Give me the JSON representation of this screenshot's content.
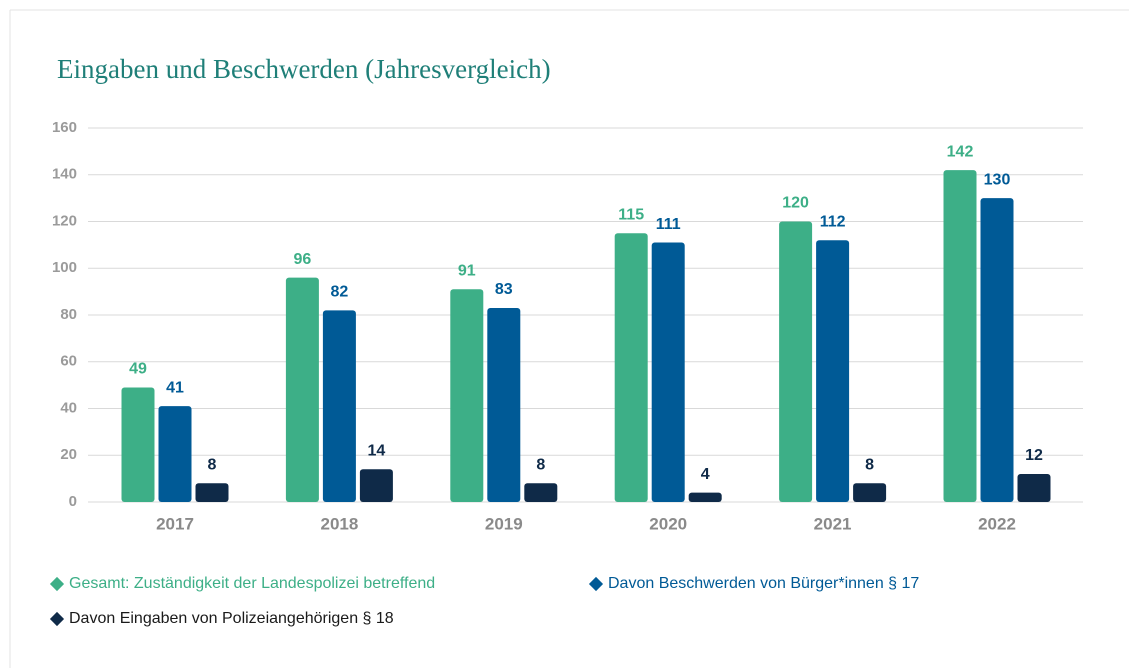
{
  "chart_data": {
    "type": "bar",
    "title": "Eingaben und Beschwerden (Jahresvergleich)",
    "categories": [
      "2017",
      "2018",
      "2019",
      "2020",
      "2021",
      "2022"
    ],
    "series": [
      {
        "name": "Gesamt: Zuständigkeit der Landespolizei betreffend",
        "color": "#3daf87",
        "values": [
          49,
          96,
          91,
          115,
          120,
          142
        ]
      },
      {
        "name": "Davon Beschwerden von Bürger*innen § 17",
        "color": "#005a96",
        "values": [
          41,
          82,
          83,
          111,
          112,
          130
        ]
      },
      {
        "name": "Davon Eingaben von Polizeiangehörigen § 18",
        "color": "#0f2a48",
        "values": [
          8,
          14,
          8,
          4,
          8,
          12
        ]
      }
    ],
    "ylim": [
      0,
      160
    ],
    "yticks": [
      0,
      20,
      40,
      60,
      80,
      100,
      120,
      140,
      160
    ],
    "grid": true
  }
}
